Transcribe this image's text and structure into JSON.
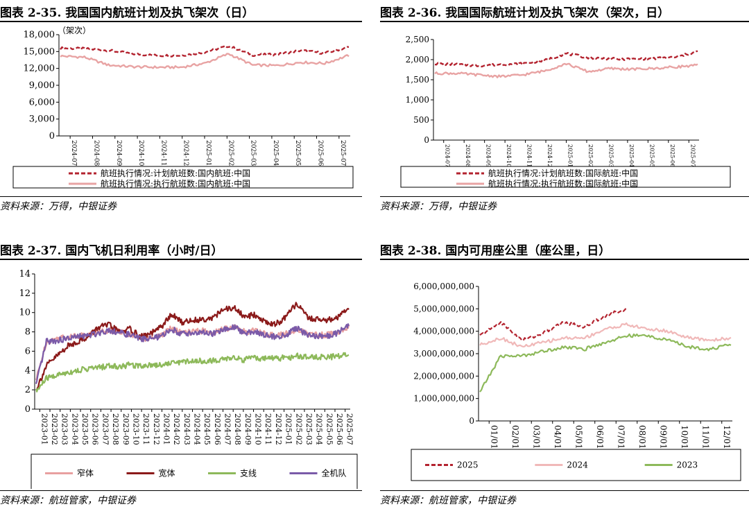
{
  "panels": [
    {
      "title": "图表 2-35. 我国国内航班计划及执飞架次（日）",
      "source": "资料来源：万得，中银证券",
      "chart_data": {
        "type": "line",
        "ylabel": "（架次）",
        "yticks": [
          "0",
          "3,000",
          "6,000",
          "9,000",
          "12,000",
          "15,000",
          "18,000"
        ],
        "ylim": [
          0,
          18000
        ],
        "x_ticklabels": [
          "2024-07",
          "2024-08",
          "2024-09",
          "2024-10",
          "2024-11",
          "2024-12",
          "2025-01",
          "2025-02",
          "2025-03",
          "2025-04",
          "2025-05",
          "2025-06",
          "2025-07"
        ],
        "legend_position": "bottom",
        "series": [
          {
            "name": "航班执行情况:计划航班数:国内航班:中国",
            "color": "#b3232f",
            "style": "dashed",
            "values": [
              15600,
              15500,
              15200,
              14600,
              14300,
              14300,
              14900,
              16000,
              14400,
              14500,
              15200,
              14700,
              15800
            ]
          },
          {
            "name": "航班执行情况:执行航班数:国内航班:中国",
            "color": "#e8a3a3",
            "style": "solid",
            "values": [
              14200,
              14000,
              12600,
              12300,
              12200,
              12200,
              12900,
              14600,
              12600,
              12500,
              13100,
              12900,
              14300
            ]
          }
        ]
      }
    },
    {
      "title": "图表 2-36. 我国国际航班计划及执飞架次（架次，日）",
      "source": "资料来源：万得，中银证券",
      "chart_data": {
        "type": "line",
        "yticks": [
          "0",
          "500",
          "1,000",
          "1,500",
          "2,000",
          "2,500"
        ],
        "ylim": [
          0,
          2500
        ],
        "x_ticklabels": [
          "2024-07",
          "2024-08",
          "2024-09",
          "2024-10",
          "2024-11",
          "2024-12",
          "2025-01",
          "2025-02",
          "2025-03",
          "2025-04",
          "2025-05",
          "2025-06",
          "2025-07"
        ],
        "legend_position": "bottom",
        "series": [
          {
            "name": "航班执行情况:计划航班数:国际航班:中国",
            "color": "#b3232f",
            "style": "dashed",
            "values": [
              1900,
              1880,
              1850,
              1880,
              1900,
              1980,
              2150,
              2050,
              2020,
              2010,
              2030,
              2060,
              2200
            ]
          },
          {
            "name": "航班执行情况:执行航班数:国际航班:中国",
            "color": "#e8a3a3",
            "style": "solid",
            "values": [
              1660,
              1660,
              1620,
              1580,
              1620,
              1720,
              1900,
              1700,
              1780,
              1760,
              1780,
              1820,
              1860
            ]
          }
        ]
      }
    },
    {
      "title": "图表 2-37. 国内飞机日利用率（小时/日）",
      "source": "资料来源：航班管家，中银证券",
      "chart_data": {
        "type": "line",
        "yticks": [
          "0",
          "2",
          "4",
          "6",
          "8",
          "10",
          "12",
          "14"
        ],
        "ylim": [
          0,
          14
        ],
        "x_ticklabels": [
          "2023-01",
          "2023-02",
          "2023-03",
          "2023-04",
          "2023-05",
          "2023-06",
          "2023-07",
          "2023-08",
          "2023-09",
          "2023-10",
          "2023-11",
          "2023-12",
          "2024-01",
          "2024-02",
          "2024-03",
          "2024-04",
          "2024-05",
          "2024-06",
          "2024-07",
          "2024-08",
          "2024-09",
          "2024-10",
          "2024-11",
          "2024-12",
          "2025-01",
          "2025-02",
          "2025-03",
          "2025-04",
          "2025-05",
          "2025-06",
          "2025-07"
        ],
        "legend_position": "bottom",
        "series": [
          {
            "name": "窄体",
            "color": "#e8a0a0",
            "values": [
              3.0,
              7.0,
              7.3,
              7.5,
              7.6,
              7.7,
              8.0,
              8.2,
              8.0,
              7.8,
              7.4,
              7.3,
              7.6,
              8.4,
              7.9,
              8.0,
              8.1,
              7.9,
              8.3,
              8.5,
              8.0,
              8.1,
              7.8,
              7.6,
              7.8,
              8.3,
              7.8,
              7.7,
              7.7,
              8.0,
              8.4
            ]
          },
          {
            "name": "宽体",
            "color": "#8b1a1a",
            "values": [
              2.0,
              4.5,
              5.5,
              6.5,
              7.0,
              7.5,
              8.5,
              8.7,
              8.0,
              8.3,
              7.5,
              7.8,
              8.5,
              9.8,
              9.0,
              9.2,
              9.3,
              9.5,
              10.3,
              10.5,
              9.5,
              9.8,
              9.0,
              8.8,
              9.5,
              11.0,
              9.5,
              9.3,
              9.2,
              9.5,
              10.5
            ]
          },
          {
            "name": "支线",
            "color": "#8db95a",
            "values": [
              1.8,
              3.2,
              3.5,
              3.8,
              4.0,
              4.2,
              4.3,
              4.5,
              4.4,
              4.6,
              4.5,
              4.6,
              4.6,
              4.8,
              4.9,
              5.0,
              5.0,
              5.0,
              5.2,
              5.3,
              5.1,
              5.3,
              5.2,
              5.3,
              5.3,
              5.5,
              5.4,
              5.4,
              5.4,
              5.5,
              5.8
            ]
          },
          {
            "name": "全机队",
            "color": "#7a5aa8",
            "values": [
              2.5,
              7.0,
              7.1,
              7.3,
              7.5,
              7.6,
              7.9,
              8.2,
              7.9,
              7.7,
              7.3,
              7.3,
              7.5,
              8.3,
              7.8,
              7.9,
              7.9,
              7.8,
              8.2,
              8.5,
              7.9,
              8.0,
              7.7,
              7.5,
              7.7,
              8.4,
              7.7,
              7.6,
              7.6,
              7.9,
              8.8
            ]
          }
        ]
      }
    },
    {
      "title": "图表 2-38. 国内可用座公里（座公里，日）",
      "source": "资料来源：航班管家，中银证券",
      "chart_data": {
        "type": "line",
        "yticks": [
          "0",
          "1,000,000,000",
          "2,000,000,000",
          "3,000,000,000",
          "4,000,000,000",
          "5,000,000,000",
          "6,000,000,000"
        ],
        "ylim": [
          0,
          6000000000
        ],
        "x_ticklabels": [
          "01/01",
          "02/01",
          "03/01",
          "04/01",
          "05/01",
          "06/01",
          "07/01",
          "08/01",
          "09/01",
          "10/01",
          "11/01",
          "12/01"
        ],
        "legend_position": "bottom",
        "series": [
          {
            "name": "2025",
            "color": "#b3232f",
            "style": "dashed",
            "values": [
              3800000000,
              4400000000,
              3600000000,
              3900000000,
              4400000000,
              4200000000,
              4700000000,
              5000000000
            ]
          },
          {
            "name": "2024",
            "color": "#f0b8b8",
            "style": "solid",
            "values": [
              3400000000,
              3700000000,
              3300000000,
              3500000000,
              3700000000,
              3700000000,
              4100000000,
              4300000000,
              4100000000,
              4000000000,
              3700000000,
              3600000000,
              3700000000
            ]
          },
          {
            "name": "2023",
            "color": "#8db95a",
            "style": "solid",
            "values": [
              1300000000,
              2900000000,
              2900000000,
              3100000000,
              3300000000,
              3200000000,
              3500000000,
              3800000000,
              3800000000,
              3600000000,
              3300000000,
              3200000000,
              3400000000
            ]
          }
        ]
      }
    }
  ]
}
